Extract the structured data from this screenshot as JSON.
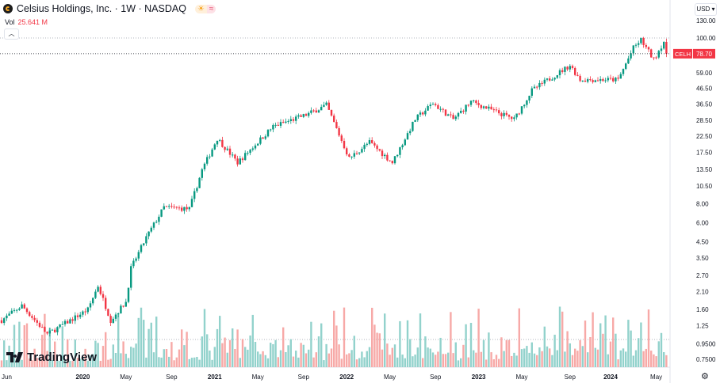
{
  "header": {
    "title": "Celsius Holdings, Inc. · 1W · NASDAQ",
    "market_icon": "sun-icon",
    "extra_icon": "approx-icon",
    "vol_label": "Vol",
    "vol_value": "25.641 M"
  },
  "currency": "USD",
  "branding": "TradingView",
  "colors": {
    "up": "#089981",
    "down": "#f23645",
    "vol_up": "#92d2cc",
    "vol_down": "#f7a9a7",
    "price_label": "#f23645"
  },
  "chart_data": {
    "type": "candlestick",
    "symbol": "CELH",
    "last_price": "78.70",
    "scale": "log",
    "y_ticks": [
      "130.00",
      "100.00",
      "59.00",
      "46.50",
      "36.50",
      "28.50",
      "22.50",
      "17.50",
      "13.50",
      "10.50",
      "8.00",
      "6.00",
      "4.50",
      "3.50",
      "2.70",
      "2.10",
      "1.60",
      "1.25",
      "0.9500",
      "0.7500"
    ],
    "y_tick_values": [
      130,
      100,
      59,
      46.5,
      36.5,
      28.5,
      22.5,
      17.5,
      13.5,
      10.5,
      8,
      6,
      4.5,
      3.5,
      2.7,
      2.1,
      1.6,
      1.25,
      0.95,
      0.75
    ],
    "x_ticks": [
      {
        "label": "Jun",
        "week": 0
      },
      {
        "label": "2020",
        "week": 32
      },
      {
        "label": "May",
        "week": 49
      },
      {
        "label": "Sep",
        "week": 67
      },
      {
        "label": "2021",
        "week": 84
      },
      {
        "label": "May",
        "week": 101
      },
      {
        "label": "Sep",
        "week": 119
      },
      {
        "label": "2022",
        "week": 136
      },
      {
        "label": "May",
        "week": 153
      },
      {
        "label": "Sep",
        "week": 171
      },
      {
        "label": "2023",
        "week": 188
      },
      {
        "label": "May",
        "week": 205
      },
      {
        "label": "Sep",
        "week": 224
      },
      {
        "label": "2024",
        "week": 240
      },
      {
        "label": "May",
        "week": 258
      }
    ],
    "price_path": [
      [
        0,
        1.36
      ],
      [
        8,
        1.7
      ],
      [
        18,
        1.1
      ],
      [
        34,
        1.6
      ],
      [
        38,
        2.3
      ],
      [
        43,
        1.36
      ],
      [
        49,
        1.8
      ],
      [
        51,
        3.0
      ],
      [
        57,
        4.8
      ],
      [
        64,
        7.6
      ],
      [
        74,
        7.4
      ],
      [
        79,
        13.4
      ],
      [
        85,
        21.7
      ],
      [
        93,
        15
      ],
      [
        107,
        26
      ],
      [
        120,
        31
      ],
      [
        128,
        36
      ],
      [
        137,
        16
      ],
      [
        145,
        20.5
      ],
      [
        154,
        15
      ],
      [
        163,
        29
      ],
      [
        170,
        37
      ],
      [
        178,
        29
      ],
      [
        185,
        38
      ],
      [
        202,
        29
      ],
      [
        209,
        45
      ],
      [
        224,
        66
      ],
      [
        228,
        53
      ],
      [
        243,
        53
      ],
      [
        249,
        86
      ],
      [
        252,
        97
      ],
      [
        257,
        72
      ],
      [
        261,
        95
      ],
      [
        262,
        78.7
      ]
    ]
  }
}
